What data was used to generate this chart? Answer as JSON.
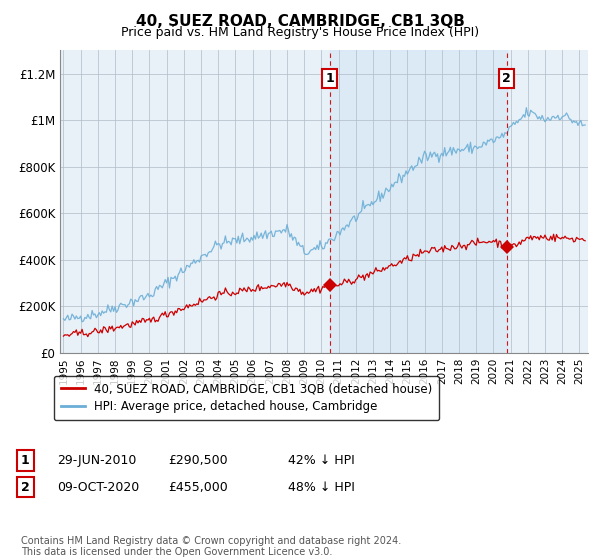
{
  "title": "40, SUEZ ROAD, CAMBRIDGE, CB1 3QB",
  "subtitle": "Price paid vs. HM Land Registry's House Price Index (HPI)",
  "hpi_label": "HPI: Average price, detached house, Cambridge",
  "price_label": "40, SUEZ ROAD, CAMBRIDGE, CB1 3QB (detached house)",
  "hpi_color": "#6baed6",
  "hpi_fill_color": "#d6e8f5",
  "price_color": "#cc0000",
  "dashed_line_color": "#cc0000",
  "background_color": "#e8f0f8",
  "grid_color": "#c8d4e0",
  "ylim": [
    0,
    1300000
  ],
  "yticks": [
    0,
    200000,
    400000,
    600000,
    800000,
    1000000,
    1200000
  ],
  "ytick_labels": [
    "£0",
    "£200K",
    "£400K",
    "£600K",
    "£800K",
    "£1M",
    "£1.2M"
  ],
  "sale1_year": 2010.49,
  "sale1_price": 290500,
  "sale1_label": "29-JUN-2010",
  "sale1_price_label": "£290,500",
  "sale1_hpi_label": "42% ↓ HPI",
  "sale2_year": 2020.77,
  "sale2_price": 455000,
  "sale2_label": "09-OCT-2020",
  "sale2_price_label": "£455,000",
  "sale2_hpi_label": "48% ↓ HPI",
  "footer": "Contains HM Land Registry data © Crown copyright and database right 2024.\nThis data is licensed under the Open Government Licence v3.0.",
  "xmin": 1994.8,
  "xmax": 2025.5
}
